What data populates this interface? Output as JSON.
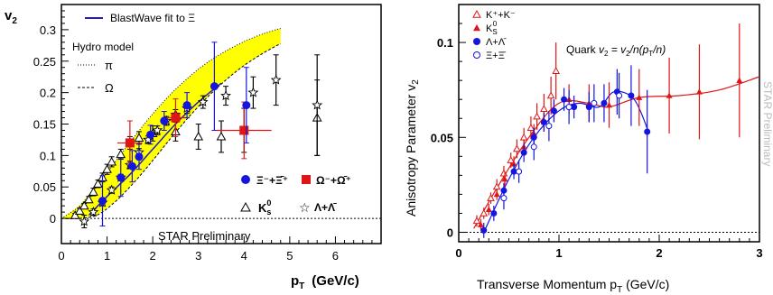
{
  "chart_data": [
    {
      "type": "scatter",
      "title": "",
      "ylabel": "v",
      "ylabel_sub": "2",
      "xlabel": "p",
      "xlabel_sub": "T",
      "xlabel_unit": "(GeV/c)",
      "xlim": [
        0,
        7
      ],
      "ylim": [
        -0.04,
        0.34
      ],
      "x_ticks": [
        "0",
        "1",
        "2",
        "3",
        "4",
        "5",
        "6"
      ],
      "y_ticks": [
        "0",
        "0.05",
        "0.1",
        "0.15",
        "0.2",
        "0.25",
        "0.3"
      ],
      "legend_top": "BlastWave fit to Ξ",
      "hydro_title": "Hydro model",
      "hydro_pi": "π",
      "hydro_omega": "Ω",
      "legend_xi": "Ξ⁻+Ξ̄⁺",
      "legend_omega": "Ω⁻+Ω̄⁺",
      "legend_k0": "K",
      "legend_k0_sub": "s",
      "legend_k0_sup": "0",
      "legend_lambda": "Λ+Λ̄",
      "preliminary": "STAR Preliminary",
      "colors": {
        "xi": "#1515e0",
        "omega": "#e01515",
        "band": "#ffff00",
        "fit": "#2020c0"
      },
      "hydro_band": {
        "x": [
          0,
          0.4,
          0.8,
          1.2,
          1.6,
          2.0,
          2.4,
          2.8,
          3.2,
          3.6,
          4.0,
          4.4,
          4.8
        ],
        "upper": [
          0,
          0.02,
          0.055,
          0.092,
          0.13,
          0.166,
          0.198,
          0.225,
          0.248,
          0.266,
          0.281,
          0.293,
          0.302
        ],
        "lower": [
          0,
          0.0,
          0.006,
          0.028,
          0.058,
          0.092,
          0.128,
          0.162,
          0.193,
          0.22,
          0.243,
          0.262,
          0.278
        ]
      },
      "blastwave_fit": {
        "x": [
          0.6,
          1.0,
          1.5,
          2.0,
          2.5,
          3.0,
          3.5
        ],
        "y": [
          0.005,
          0.035,
          0.07,
          0.11,
          0.15,
          0.185,
          0.215
        ]
      },
      "series": [
        {
          "name": "Ξ⁻+Ξ̄⁺",
          "marker": "filled-circle",
          "x": [
            0.9,
            1.3,
            1.55,
            1.7,
            1.95,
            2.25,
            2.75,
            3.35,
            4.05
          ],
          "y": [
            0.028,
            0.065,
            0.083,
            0.098,
            0.133,
            0.155,
            0.18,
            0.21,
            0.18
          ],
          "err": [
            0.04,
            0.03,
            0.025,
            0.02,
            0.015,
            0.015,
            0.02,
            0.07,
            0.06
          ]
        },
        {
          "name": "Ω⁻+Ω̄⁺",
          "marker": "filled-square",
          "x": [
            1.5,
            2.5,
            4.0
          ],
          "y": [
            0.12,
            0.16,
            0.14
          ],
          "err": [
            0.035,
            0.03,
            0.045
          ],
          "xerr": [
            0.55,
            0.6,
            1.2
          ]
        },
        {
          "name": "K",
          "marker": "open-triangle",
          "x": [
            0.3,
            0.4,
            0.5,
            0.6,
            0.7,
            0.8,
            0.9,
            1.0,
            1.1,
            1.3,
            1.5,
            1.7,
            2.0,
            2.5,
            3.0,
            3.5,
            4.0,
            5.6
          ],
          "y": [
            0.005,
            0.012,
            0.02,
            0.03,
            0.042,
            0.055,
            0.065,
            0.078,
            0.09,
            0.102,
            0.12,
            0.128,
            0.135,
            0.138,
            0.13,
            0.13,
            0.14,
            0.16
          ],
          "err": [
            0.003,
            0.004,
            0.004,
            0.005,
            0.006,
            0.006,
            0.007,
            0.008,
            0.008,
            0.008,
            0.01,
            0.01,
            0.012,
            0.015,
            0.02,
            0.025,
            0.035,
            0.06
          ]
        },
        {
          "name": "Λ+Λ̄",
          "marker": "open-star",
          "x": [
            0.5,
            0.7,
            0.9,
            1.1,
            1.3,
            1.5,
            1.7,
            1.9,
            2.1,
            2.3,
            2.5,
            2.75,
            3.1,
            3.6,
            4.2,
            4.7,
            5.6
          ],
          "y": [
            -0.005,
            0.01,
            0.025,
            0.045,
            0.065,
            0.085,
            0.105,
            0.125,
            0.14,
            0.155,
            0.165,
            0.175,
            0.185,
            0.195,
            0.2,
            0.22,
            0.18
          ],
          "err": [
            0.01,
            0.005,
            0.005,
            0.005,
            0.005,
            0.006,
            0.006,
            0.006,
            0.007,
            0.007,
            0.008,
            0.008,
            0.01,
            0.015,
            0.025,
            0.04,
            0.08
          ]
        }
      ]
    },
    {
      "type": "scatter",
      "title": "",
      "ylabel": "Anisotropy Parameter  v",
      "ylabel_sub": "2",
      "xlabel": "Transverse Momentum  p",
      "xlabel_sub": "T",
      "xlabel_unit": " (GeV/c)",
      "xlim": [
        0,
        3
      ],
      "ylim": [
        -0.005,
        0.12
      ],
      "x_ticks": [
        "0",
        "1",
        "2",
        "3"
      ],
      "y_ticks": [
        "0",
        "0.05",
        "0.1"
      ],
      "annotation_prefix": "Quark  ",
      "annotation_formula": "v",
      "annotation_formula_sub": "2",
      "annotation_rest": " = v",
      "annotation_rest_sub": "2",
      "annotation_tail": "/n(p",
      "annotation_tail_sub": "T",
      "annotation_end": "/n)",
      "preliminary": "STAR Preliminary",
      "legend": [
        {
          "label": "K⁺+K⁻",
          "marker": "open-triangle",
          "color": "#e01515"
        },
        {
          "label": "K",
          "sub": "S",
          "sup": "0",
          "marker": "filled-triangle",
          "color": "#e01515"
        },
        {
          "label": "Λ+Λ̄",
          "marker": "filled-circle",
          "color": "#1515e0"
        },
        {
          "label": "Ξ+Ξ̄",
          "marker": "open-circle",
          "color": "#1515e0"
        }
      ],
      "series": [
        {
          "name": "K⁺+K⁻",
          "marker": "open-triangle",
          "color": "#e01515",
          "x": [
            0.18,
            0.25,
            0.32,
            0.38,
            0.45,
            0.52,
            0.58,
            0.65,
            0.72,
            0.78,
            0.85,
            0.92,
            0.97
          ],
          "y": [
            0.006,
            0.01,
            0.018,
            0.024,
            0.031,
            0.038,
            0.044,
            0.05,
            0.055,
            0.061,
            0.065,
            0.072,
            0.085
          ],
          "err": [
            0.003,
            0.003,
            0.003,
            0.004,
            0.004,
            0.004,
            0.005,
            0.005,
            0.006,
            0.007,
            0.008,
            0.01,
            0.015
          ]
        },
        {
          "name": "K",
          "marker": "filled-triangle",
          "color": "#e01515",
          "x": [
            0.22,
            0.3,
            0.38,
            0.46,
            0.55,
            0.65,
            0.75,
            0.85,
            0.95,
            1.1,
            1.3,
            1.5,
            1.8,
            2.1,
            2.4,
            2.8
          ],
          "y": [
            0.004,
            0.012,
            0.02,
            0.028,
            0.036,
            0.045,
            0.052,
            0.058,
            0.064,
            0.07,
            0.068,
            0.067,
            0.071,
            0.072,
            0.074,
            0.08
          ],
          "err": [
            0.003,
            0.003,
            0.003,
            0.004,
            0.004,
            0.004,
            0.005,
            0.005,
            0.006,
            0.008,
            0.01,
            0.012,
            0.015,
            0.02,
            0.025,
            0.03
          ]
        },
        {
          "name": "Λ+Λ̄",
          "marker": "filled-circle",
          "color": "#1515e0",
          "x": [
            0.25,
            0.35,
            0.45,
            0.55,
            0.65,
            0.75,
            0.85,
            0.95,
            1.05,
            1.15,
            1.3,
            1.45,
            1.58,
            1.72,
            1.88
          ],
          "y": [
            0.001,
            0.01,
            0.022,
            0.032,
            0.042,
            0.05,
            0.058,
            0.064,
            0.07,
            0.066,
            0.066,
            0.068,
            0.074,
            0.072,
            0.053
          ],
          "err": [
            0.004,
            0.004,
            0.004,
            0.004,
            0.005,
            0.005,
            0.005,
            0.006,
            0.006,
            0.006,
            0.008,
            0.01,
            0.012,
            0.016,
            0.022
          ]
        },
        {
          "name": "Ξ+Ξ̄",
          "marker": "open-circle",
          "color": "#1515e0",
          "x": [
            0.45,
            0.6,
            0.75,
            0.9,
            1.1,
            1.35,
            1.6
          ],
          "y": [
            0.018,
            0.032,
            0.045,
            0.056,
            0.066,
            0.068,
            0.072
          ],
          "err": [
            0.006,
            0.006,
            0.007,
            0.008,
            0.009,
            0.01,
            0.012
          ]
        }
      ],
      "fit_baryon": {
        "x": [
          0.25,
          0.5,
          0.75,
          1.0,
          1.2,
          1.4,
          1.55,
          1.75,
          1.9
        ],
        "y": [
          0.0,
          0.028,
          0.05,
          0.064,
          0.068,
          0.066,
          0.074,
          0.07,
          0.052
        ]
      },
      "fit_meson": {
        "x": [
          0.15,
          0.4,
          0.7,
          1.0,
          1.3,
          1.5,
          1.8,
          2.2,
          2.6,
          3.0
        ],
        "y": [
          0.002,
          0.025,
          0.05,
          0.068,
          0.068,
          0.066,
          0.071,
          0.072,
          0.075,
          0.082
        ]
      }
    }
  ]
}
